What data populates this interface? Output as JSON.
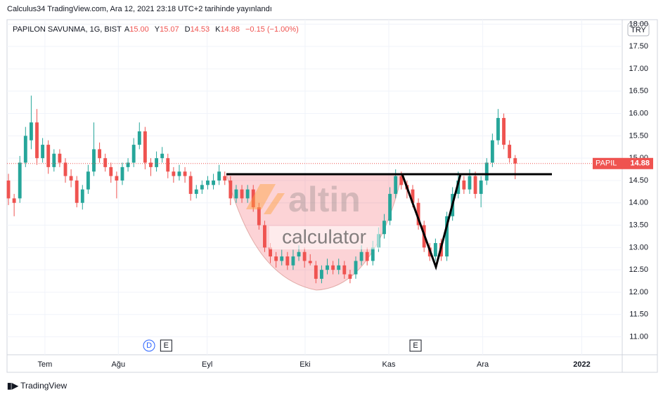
{
  "header": {
    "published": "Calculus34 TradingView.com, Ara 12, 2021 23:18 UTC+2 tarihinde yayınlandı"
  },
  "legend": {
    "symbol": "PAPILON SAVUNMA, 1G, BIST",
    "items": [
      {
        "label": "A",
        "value": "15.00"
      },
      {
        "label": "Y",
        "value": "15.07"
      },
      {
        "label": "D",
        "value": "14.53"
      },
      {
        "label": "K",
        "value": "14.88"
      }
    ],
    "change": "−0.15 (−1.00%)"
  },
  "watermark": [
    "altin",
    "calculator"
  ],
  "footer": {
    "brand": "TradingView"
  },
  "chart_data": {
    "type": "candlestick",
    "currency": "TRY",
    "ticker": "PAPIL",
    "up_color": "#26a69a",
    "down_color": "#ef5350",
    "open": [
      14.5,
      14.1,
      14.1,
      14.9,
      15.4,
      15.8,
      15.0,
      15.3,
      14.8,
      15.1,
      14.9,
      14.6,
      14.5,
      14.0,
      14.3,
      14.7,
      15.2,
      15.0,
      14.8,
      14.6,
      14.5,
      14.8,
      14.9,
      15.3,
      15.6,
      14.9,
      14.8,
      15.0,
      15.0,
      14.7,
      14.6,
      14.7,
      14.6,
      14.2,
      14.3,
      14.4,
      14.4,
      14.5,
      14.6,
      14.5,
      14.1,
      14.3,
      14.1,
      14.3,
      13.9,
      13.5,
      13.0,
      12.8,
      12.7,
      12.8,
      12.6,
      12.8,
      12.9,
      12.7,
      12.6,
      12.3,
      12.5,
      12.6,
      12.5,
      12.6,
      12.4,
      12.4,
      12.7,
      12.9,
      12.7,
      13.0,
      13.3,
      13.6,
      14.2,
      14.6,
      14.4,
      14.3,
      14.0,
      13.5,
      13.0,
      12.8,
      13.1,
      12.8,
      13.7,
      14.2,
      14.5,
      14.3,
      14.6,
      14.2,
      14.5,
      14.9,
      15.4,
      15.9,
      15.3,
      15.0
    ],
    "high": [
      14.65,
      14.2,
      15.05,
      15.7,
      16.4,
      16.1,
      15.45,
      15.4,
      15.2,
      15.2,
      15.0,
      14.75,
      14.6,
      14.4,
      14.85,
      15.8,
      15.35,
      15.1,
      14.9,
      14.7,
      14.9,
      15.0,
      15.45,
      15.8,
      15.7,
      15.0,
      15.15,
      15.25,
      15.1,
      14.8,
      14.85,
      14.8,
      14.7,
      14.4,
      14.5,
      14.6,
      14.65,
      14.85,
      14.7,
      14.6,
      14.4,
      14.4,
      14.4,
      14.4,
      14.0,
      13.6,
      13.1,
      12.9,
      12.95,
      12.9,
      12.95,
      13.05,
      13.0,
      12.85,
      12.7,
      12.6,
      12.75,
      12.7,
      12.75,
      12.7,
      12.5,
      12.8,
      13.05,
      13.0,
      13.15,
      13.45,
      13.75,
      14.35,
      14.75,
      14.7,
      14.5,
      14.4,
      14.1,
      13.6,
      13.1,
      13.2,
      13.2,
      13.8,
      14.35,
      14.7,
      14.6,
      14.75,
      14.7,
      14.6,
      15.0,
      15.55,
      16.1,
      16.0,
      15.4,
      15.07
    ],
    "low": [
      13.95,
      13.7,
      14.0,
      14.8,
      15.2,
      14.85,
      14.9,
      14.65,
      14.7,
      14.8,
      14.45,
      14.35,
      13.9,
      13.85,
      14.2,
      14.6,
      14.9,
      14.7,
      14.45,
      14.1,
      14.4,
      14.7,
      14.8,
      15.2,
      14.75,
      14.6,
      14.7,
      14.9,
      14.55,
      14.45,
      14.5,
      14.45,
      14.05,
      14.1,
      14.2,
      14.3,
      14.3,
      14.4,
      14.4,
      13.95,
      14.0,
      14.0,
      14.0,
      13.8,
      13.4,
      12.9,
      12.65,
      12.55,
      12.6,
      12.5,
      12.5,
      12.7,
      12.55,
      12.6,
      12.2,
      12.2,
      12.4,
      12.4,
      12.4,
      12.3,
      12.2,
      12.3,
      12.6,
      12.6,
      12.6,
      12.9,
      13.2,
      13.5,
      14.1,
      14.3,
      14.1,
      13.9,
      13.4,
      12.9,
      12.7,
      12.7,
      12.7,
      12.7,
      13.6,
      14.1,
      14.2,
      14.2,
      14.1,
      13.9,
      14.4,
      14.8,
      15.3,
      15.2,
      14.9,
      14.53
    ],
    "close": [
      14.1,
      14.0,
      14.9,
      15.5,
      15.8,
      15.0,
      15.3,
      14.8,
      15.1,
      14.9,
      14.6,
      14.5,
      14.0,
      14.3,
      14.7,
      15.2,
      15.0,
      14.8,
      14.6,
      14.5,
      14.8,
      14.9,
      15.3,
      15.6,
      14.9,
      14.8,
      15.0,
      15.1,
      14.7,
      14.6,
      14.7,
      14.6,
      14.2,
      14.3,
      14.4,
      14.5,
      14.5,
      14.7,
      14.5,
      14.1,
      14.3,
      14.1,
      14.3,
      13.9,
      13.5,
      13.0,
      12.8,
      12.7,
      12.8,
      12.6,
      12.8,
      12.9,
      12.7,
      12.65,
      12.3,
      12.5,
      12.6,
      12.5,
      12.6,
      12.4,
      12.3,
      12.7,
      12.9,
      12.7,
      13.0,
      13.3,
      13.6,
      14.2,
      14.6,
      14.4,
      14.3,
      14.0,
      13.5,
      13.0,
      12.8,
      13.1,
      12.8,
      13.7,
      14.2,
      14.5,
      14.3,
      14.6,
      14.2,
      14.5,
      14.9,
      15.4,
      15.9,
      15.3,
      15.0,
      14.88
    ],
    "xlim": [
      -0.25,
      107.8
    ],
    "xticks": [
      {
        "value": 6.4,
        "label": "Tem"
      },
      {
        "value": 19.3,
        "label": "Ağu"
      },
      {
        "value": 34.9,
        "label": "Eyl"
      },
      {
        "value": 52.1,
        "label": "Eki"
      },
      {
        "value": 66.8,
        "label": "Kas"
      },
      {
        "value": 83.3,
        "label": "Ara"
      },
      {
        "value": 100.7,
        "label": "2022"
      }
    ],
    "ylim": [
      10.6,
      18.1
    ],
    "yticks": [
      {
        "value": 11,
        "label": "11.00"
      },
      {
        "value": 11.5,
        "label": "11.50"
      },
      {
        "value": 12,
        "label": "12.00"
      },
      {
        "value": 12.5,
        "label": "12.50"
      },
      {
        "value": 13,
        "label": "13.00"
      },
      {
        "value": 13.5,
        "label": "13.50"
      },
      {
        "value": 14,
        "label": "14.00"
      },
      {
        "value": 14.5,
        "label": "14.50"
      },
      {
        "value": 15,
        "label": "15.00"
      },
      {
        "value": 15.5,
        "label": "15.50"
      },
      {
        "value": 16,
        "label": "16.00"
      },
      {
        "value": 16.5,
        "label": "16.50"
      },
      {
        "value": 17,
        "label": "17.00"
      },
      {
        "value": 17.5,
        "label": "17.50"
      },
      {
        "value": 18,
        "label": "18.00"
      }
    ],
    "events": [
      {
        "label": "D",
        "x": 24.7
      },
      {
        "label": "E",
        "x": 27.7
      },
      {
        "label": "E",
        "x": 71.5
      }
    ],
    "grid": true
  }
}
